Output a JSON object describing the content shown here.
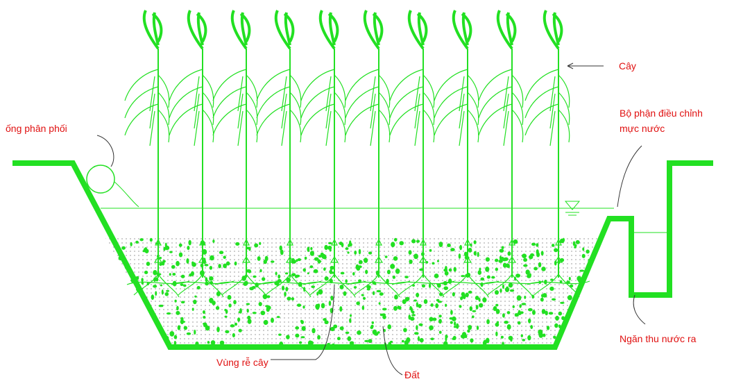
{
  "labels": {
    "distribution_pipe": "ống phân phối",
    "plant": "Cây",
    "level_control": [
      "Bộ phận điều chỉnh",
      "mực nước"
    ],
    "outlet": "Ngăn thu nước ra",
    "root_zone": "Vùng rễ cây",
    "soil": "Đất"
  }
}
